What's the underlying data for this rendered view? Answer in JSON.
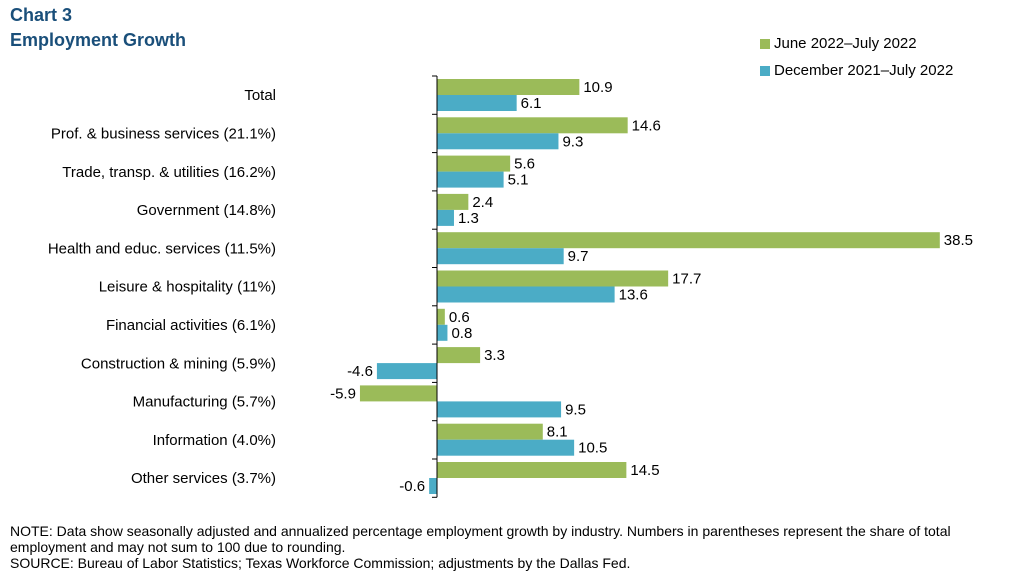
{
  "chart_title": {
    "line1": "Chart 3",
    "line2": "Employment  Growth"
  },
  "colors": {
    "series1": "#9bbb59",
    "series2": "#4bacc6",
    "title": "#1a4f7a"
  },
  "notes": {
    "note": "NOTE: Data show seasonally adjusted and annualized percentage employment growth by industry. Numbers in parentheses represent the share of total employment and may not sum to 100 due to rounding.",
    "source": "SOURCE: Bureau of Labor Statistics; Texas Workforce Commission; adjustments by the Dallas Fed."
  },
  "chart_data": {
    "type": "bar",
    "orientation": "horizontal",
    "categories": [
      "Total",
      "Prof. & business services (21.1%)",
      "Trade, transp. & utilities (16.2%)",
      "Government (14.8%)",
      "Health and educ. services (11.5%)",
      "Leisure & hospitality (11%)",
      "Financial activities (6.1%)",
      "Construction & mining (5.9%)",
      "Manufacturing (5.7%)",
      "Information (4.0%)",
      "Other services (3.7%)"
    ],
    "series": [
      {
        "name": "June 2022–July  2022",
        "values": [
          10.9,
          14.6,
          5.6,
          2.4,
          38.5,
          17.7,
          0.6,
          3.3,
          -5.9,
          8.1,
          14.5
        ]
      },
      {
        "name": "December  2021–July  2022",
        "values": [
          6.1,
          9.3,
          5.1,
          1.3,
          9.7,
          13.6,
          0.8,
          -4.6,
          9.5,
          10.5,
          -0.6
        ]
      }
    ],
    "legend_position": "top-right",
    "grid": false
  }
}
